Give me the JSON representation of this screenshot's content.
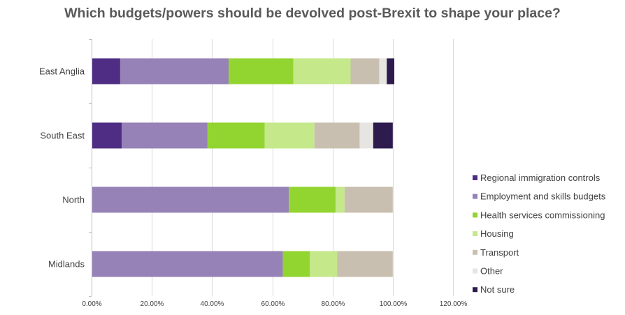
{
  "chart_data": {
    "type": "bar",
    "orientation": "horizontal",
    "stacked": true,
    "title": "Which budgets/powers should be devolved post-Brexit to shape your place?",
    "categories": [
      "East Anglia",
      "South East",
      "North",
      "Midlands"
    ],
    "xlim": [
      0,
      1.2
    ],
    "x_ticks": [
      "0.00%",
      "20.00%",
      "40.00%",
      "60.00%",
      "80.00%",
      "100.00%",
      "120.00%"
    ],
    "x_tick_values": [
      0,
      0.2,
      0.4,
      0.6,
      0.8,
      1.0,
      1.2
    ],
    "grid": "vertical",
    "legend_position": "right",
    "series": [
      {
        "name": "Regional immigration controls",
        "color": "#4f2d84",
        "values": [
          0.095,
          0.1,
          0,
          0
        ]
      },
      {
        "name": "Employment and skills budgets",
        "color": "#9682b6",
        "values": [
          0.36,
          0.285,
          0.655,
          0.635
        ]
      },
      {
        "name": "Health services commissioning",
        "color": "#93d530",
        "values": [
          0.215,
          0.19,
          0.155,
          0.09
        ]
      },
      {
        "name": "Housing",
        "color": "#c5e88b",
        "values": [
          0.19,
          0.165,
          0.03,
          0.09
        ]
      },
      {
        "name": "Transport",
        "color": "#c9bfb0",
        "values": [
          0.095,
          0.15,
          0.16,
          0.185
        ]
      },
      {
        "name": "Other",
        "color": "#e7e5e1",
        "values": [
          0.025,
          0.045,
          0,
          0
        ]
      },
      {
        "name": "Not sure",
        "color": "#2d1b4e",
        "values": [
          0.025,
          0.065,
          0,
          0
        ]
      }
    ]
  }
}
